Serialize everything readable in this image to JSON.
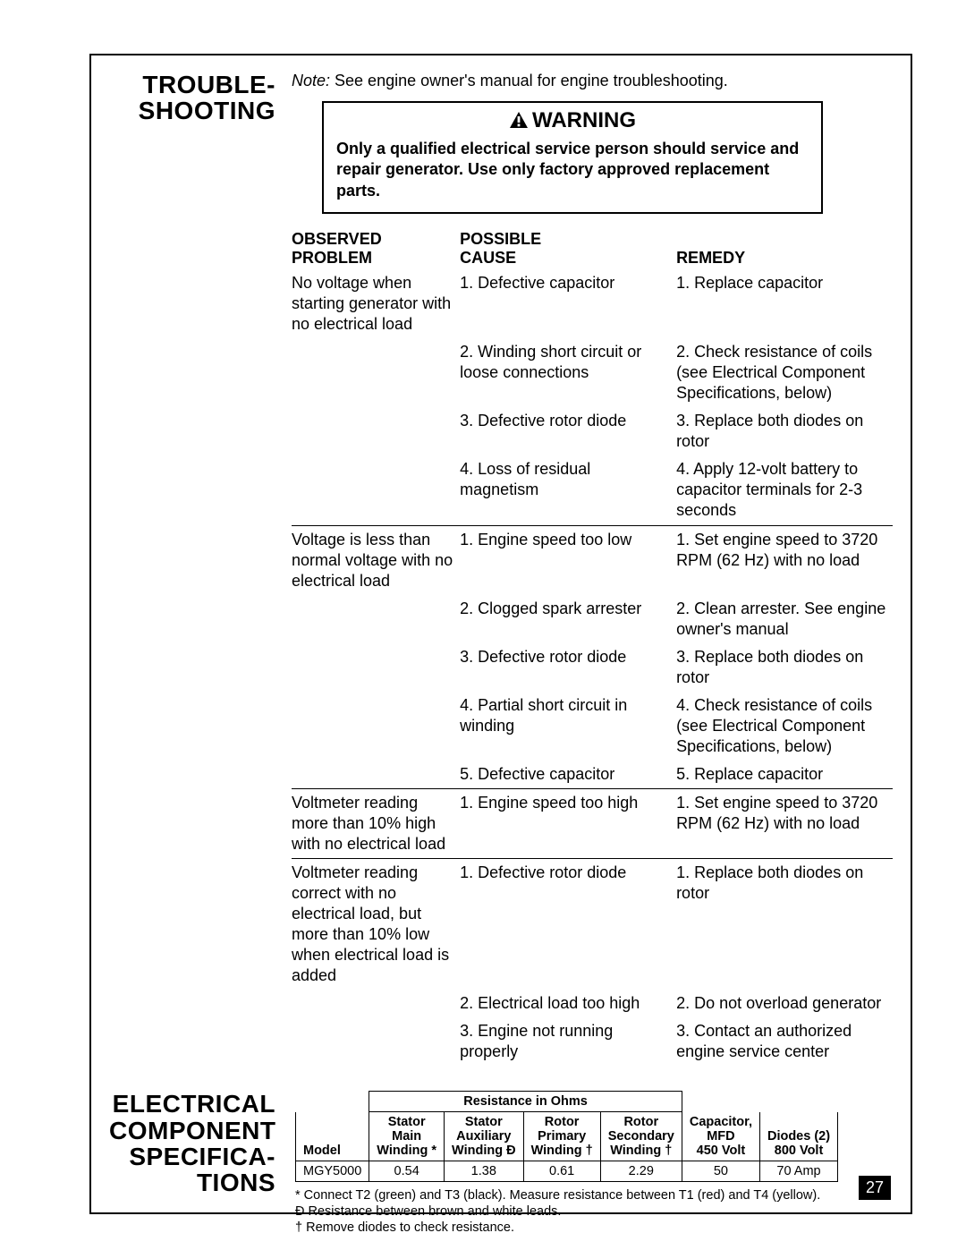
{
  "page_number": "27",
  "section1": {
    "heading_l1": "TROUBLE-",
    "heading_l2": "SHOOTING",
    "note_prefix": "Note:",
    "note_text": " See engine owner's manual for engine troubleshooting.",
    "warning_label": "WARNING",
    "warning_body": "Only a qualified electrical service person should service and repair generator. Use only factory approved replacement parts.",
    "col_headers": {
      "problem_l1": "OBSERVED",
      "problem_l2": "PROBLEM",
      "cause_l1": "POSSIBLE",
      "cause_l2": "CAUSE",
      "remedy": "REMEDY"
    },
    "rows": [
      {
        "problem": "No voltage when starting generator with no electrical load",
        "cause": "1. Defective capacitor",
        "remedy": "1. Replace capacitor"
      },
      {
        "problem": "",
        "cause": "2. Winding short circuit or loose connections",
        "remedy": "2. Check resistance of coils (see Electrical Component Specifications, below)"
      },
      {
        "problem": "",
        "cause": "3. Defective rotor diode",
        "remedy": "3. Replace both diodes on rotor"
      },
      {
        "problem": "",
        "cause": "4. Loss of residual magnetism",
        "remedy": "4. Apply 12-volt battery to capacitor terminals for 2-3 seconds"
      },
      {
        "divider": true,
        "problem": "Voltage is less than normal voltage with no electrical load",
        "cause": "1. Engine speed too low",
        "remedy": "1. Set engine speed to 3720 RPM (62 Hz) with no load"
      },
      {
        "problem": "",
        "cause": "2. Clogged spark arrester",
        "remedy": "2. Clean arrester. See engine owner's manual"
      },
      {
        "problem": "",
        "cause": "3. Defective rotor diode",
        "remedy": "3. Replace both diodes on rotor"
      },
      {
        "problem": "",
        "cause": "4. Partial short circuit in winding",
        "remedy": "4. Check resistance of coils (see Electrical Component Specifications, below)"
      },
      {
        "problem": "",
        "cause": "5. Defective capacitor",
        "remedy": "5. Replace capacitor"
      },
      {
        "divider": true,
        "problem": "Voltmeter reading more than 10% high with no electrical load",
        "cause": "1. Engine speed too high",
        "remedy": "1. Set engine speed to 3720 RPM (62 Hz) with no load"
      },
      {
        "divider": true,
        "problem": "Voltmeter reading correct with no electrical load, but more than 10% low when electrical load is added",
        "cause": "1. Defective rotor diode",
        "remedy": "1. Replace both diodes on rotor"
      },
      {
        "problem": "",
        "cause": "2. Electrical load too high",
        "remedy": "2. Do not overload generator"
      },
      {
        "problem": "",
        "cause": "3. Engine not running properly",
        "remedy": "3. Contact an authorized engine service center"
      }
    ]
  },
  "section2": {
    "heading_l1": "ELECTRICAL",
    "heading_l2": "COMPONENT",
    "heading_l3": "SPECIFICA-",
    "heading_l4": "TIONS",
    "table": {
      "group_header": "Resistance in Ohms",
      "columns": [
        {
          "l1": "",
          "l2": "",
          "l3": "Model"
        },
        {
          "l1": "Stator",
          "l2": "Main",
          "l3": "Winding *"
        },
        {
          "l1": "Stator",
          "l2": "Auxiliary",
          "l3": "Winding Đ"
        },
        {
          "l1": "Rotor",
          "l2": "Primary",
          "l3": "Winding †"
        },
        {
          "l1": "Rotor",
          "l2": "Secondary",
          "l3": "Winding †"
        },
        {
          "l1": "Capacitor,",
          "l2": "MFD",
          "l3": "450 Volt"
        },
        {
          "l1": "",
          "l2": "Diodes (2)",
          "l3": "800 Volt"
        }
      ],
      "rows": [
        [
          "MGY5000",
          "0.54",
          "1.38",
          "0.61",
          "2.29",
          "50",
          "70 Amp"
        ]
      ]
    },
    "footnotes": [
      "*  Connect T2 (green) and T3 (black). Measure resistance between T1 (red) and T4 (yellow).",
      "Đ  Resistance between brown and white leads.",
      "†  Remove diodes to check resistance."
    ]
  }
}
